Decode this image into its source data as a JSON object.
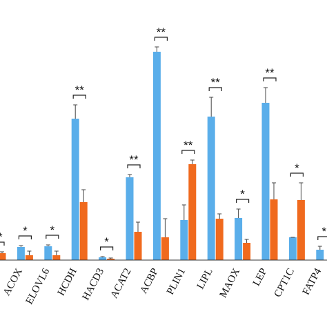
{
  "chart_data": {
    "type": "bar",
    "categories": [
      null,
      "ACOX",
      "ELOVL6",
      "HCDH",
      "HACD3",
      "ACAT2",
      "ACBP",
      "PLIN1",
      "LIPL",
      "MAOX",
      "LEP",
      "CPT1C",
      "FATP4"
    ],
    "series": [
      {
        "color": "#5aaeea",
        "values": [
          null,
          19,
          20,
          205,
          4,
          120,
          302,
          58,
          208,
          61,
          228,
          33,
          15
        ],
        "errors": [
          null,
          2,
          2,
          20,
          1,
          4,
          7,
          22,
          28,
          13,
          22,
          0,
          5
        ]
      },
      {
        "color": "#f06a1e",
        "values": [
          10,
          7,
          7,
          84,
          2,
          41,
          33,
          139,
          60,
          25,
          88,
          87,
          null
        ],
        "errors": [
          2,
          6,
          6,
          18,
          1,
          14,
          27,
          6,
          7,
          5,
          24,
          25,
          null
        ]
      }
    ],
    "significance": [
      "**",
      "*",
      "*",
      "**",
      "*",
      "**",
      "**",
      "**",
      "**",
      "*",
      "**",
      "*",
      "*"
    ],
    "ylim": [
      0,
      377
    ]
  }
}
